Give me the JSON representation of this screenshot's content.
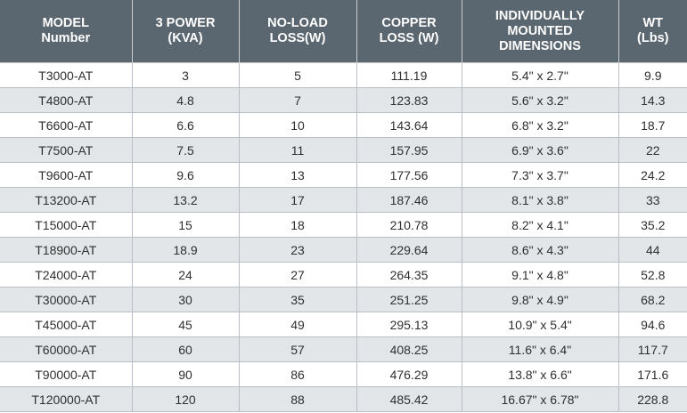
{
  "headers": [
    [
      "MODEL",
      "Number"
    ],
    [
      "3 POWER",
      "(KVA)"
    ],
    [
      "NO-LOAD",
      "LOSS(W)"
    ],
    [
      "COPPER",
      "LOSS (W)"
    ],
    [
      "INDIVIDUALLY",
      "MOUNTED",
      "DIMENSIONS"
    ],
    [
      "WT",
      "(Lbs)"
    ]
  ],
  "rows": [
    [
      "T3000-AT",
      "3",
      "5",
      "111.19",
      "5.4\" x 2.7\"",
      "9.9"
    ],
    [
      "T4800-AT",
      "4.8",
      "7",
      "123.83",
      "5.6\" x 3.2\"",
      "14.3"
    ],
    [
      "T6600-AT",
      "6.6",
      "10",
      "143.64",
      "6.8\" x 3.2\"",
      "18.7"
    ],
    [
      "T7500-AT",
      "7.5",
      "11",
      "157.95",
      "6.9\" x 3.6\"",
      "22"
    ],
    [
      "T9600-AT",
      "9.6",
      "13",
      "177.56",
      "7.3\" x 3.7\"",
      "24.2"
    ],
    [
      "T13200-AT",
      "13.2",
      "17",
      "187.46",
      "8.1\" x 3.8\"",
      "33"
    ],
    [
      "T15000-AT",
      "15",
      "18",
      "210.78",
      "8.2\" x 4.1\"",
      "35.2"
    ],
    [
      "T18900-AT",
      "18.9",
      "23",
      "229.64",
      "8.6\" x 4.3\"",
      "44"
    ],
    [
      "T24000-AT",
      "24",
      "27",
      "264.35",
      "9.1\" x 4.8\"",
      "52.8"
    ],
    [
      "T30000-AT",
      "30",
      "35",
      "251.25",
      "9.8\" x 4.9\"",
      "68.2"
    ],
    [
      "T45000-AT",
      "45",
      "49",
      "295.13",
      "10.9\" x 5.4\"",
      "94.6"
    ],
    [
      "T60000-AT",
      "60",
      "57",
      "408.25",
      "11.6\" x 6.4\"",
      "117.7"
    ],
    [
      "T90000-AT",
      "90",
      "86",
      "476.29",
      "13.8\" x 6.6\"",
      "171.6"
    ],
    [
      "T120000-AT",
      "120",
      "88",
      "485.42",
      "16.67\" x 6.78\"",
      "228.8"
    ]
  ]
}
